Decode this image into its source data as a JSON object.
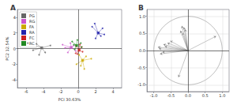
{
  "chart_data": [
    {
      "type": "scatter",
      "title": "A",
      "xlabel": "PCI 30.63%",
      "ylabel": "PC2 12.54%",
      "xlim": [
        -7,
        5
      ],
      "ylim": [
        -5,
        5
      ],
      "xticks": [
        -6,
        -4,
        -2,
        0,
        2,
        4
      ],
      "yticks": [
        -4,
        -2,
        0,
        2,
        4
      ],
      "grid": false,
      "legend": "upper left",
      "series": [
        {
          "name": "PG",
          "color": "#666666",
          "centroid": [
            -4.2,
            0.1
          ],
          "x": [
            -5.8,
            -5.2,
            -4.8,
            -3.8,
            -3.2,
            -4.5
          ],
          "values": [
            0.7,
            -0.2,
            0.6,
            -0.5,
            0.4,
            -0.8
          ]
        },
        {
          "name": "RG",
          "color": "#cc55cc",
          "centroid": [
            -0.8,
            0.15
          ],
          "x": [
            -1.8,
            -1.2,
            -0.5,
            -0.3,
            -1.5,
            -0.9
          ],
          "values": [
            0.5,
            -0.5,
            0.4,
            -0.3,
            0.1,
            0.7
          ]
        },
        {
          "name": "FA",
          "color": "#ccaa00",
          "centroid": [
            0.5,
            -1.5
          ],
          "x": [
            0.1,
            0.3,
            0.9,
            0.7,
            1.5,
            -0.2
          ],
          "values": [
            -0.8,
            -2.2,
            -1.0,
            -2.6,
            -1.3,
            -2.0
          ]
        },
        {
          "name": "RA",
          "color": "#2222aa",
          "centroid": [
            2.3,
            2.0
          ],
          "x": [
            1.6,
            2.0,
            2.8,
            2.6,
            1.9,
            3.0
          ],
          "values": [
            2.8,
            1.3,
            2.6,
            1.6,
            3.2,
            1.8
          ]
        },
        {
          "name": "FC",
          "color": "#cc2222",
          "centroid": [
            0.1,
            -0.2
          ],
          "x": [
            -0.3,
            0.4,
            0.2,
            -0.2,
            0.5,
            -0.1
          ],
          "values": [
            -0.6,
            0.2,
            0.5,
            0.3,
            -0.4,
            -0.7
          ]
        },
        {
          "name": "RC",
          "color": "#228822",
          "centroid": [
            -0.2,
            0.4
          ],
          "x": [
            -0.7,
            -0.4,
            0.3,
            -0.1,
            0.4,
            -0.5
          ],
          "values": [
            0.9,
            -0.1,
            0.7,
            1.1,
            0.2,
            0.5
          ]
        }
      ]
    },
    {
      "type": "vector",
      "title": "B",
      "xlim": [
        -1.2,
        1.2
      ],
      "ylim": [
        -1.2,
        1.2
      ],
      "xticks": [
        {
          "value": -1.0,
          "label": "-1.0"
        },
        -0.5,
        {
          "value": 0,
          "label": "0.0"
        },
        0.5,
        {
          "value": 1.0,
          "label": "1.0"
        }
      ],
      "yticks": [
        {
          "value": -1.0,
          "label": "-1.0"
        },
        -0.5,
        {
          "value": 0,
          "label": "0.0"
        },
        0.5,
        {
          "value": 1.0,
          "label": "1.0"
        }
      ],
      "grid": true,
      "labels": [
        "EGR",
        "CIN",
        "LFR",
        "SFR",
        "TTI",
        "UIN",
        "LIN",
        "TIN",
        "NEC",
        "CAR",
        "BIN",
        "TGR",
        "OIN",
        "OMN",
        "NOI"
      ],
      "x": [
        0.82,
        -0.12,
        -0.18,
        -0.08,
        -0.22,
        -0.16,
        -0.52,
        -0.6,
        -0.68,
        -0.72,
        -0.88,
        -0.85,
        -0.75,
        -0.82,
        -0.28
      ],
      "values": [
        0.42,
        0.68,
        0.72,
        0.62,
        0.58,
        0.52,
        0.28,
        0.22,
        0.12,
        0.18,
        0.1,
        0.05,
        -0.05,
        -0.1,
        -0.78
      ]
    }
  ]
}
